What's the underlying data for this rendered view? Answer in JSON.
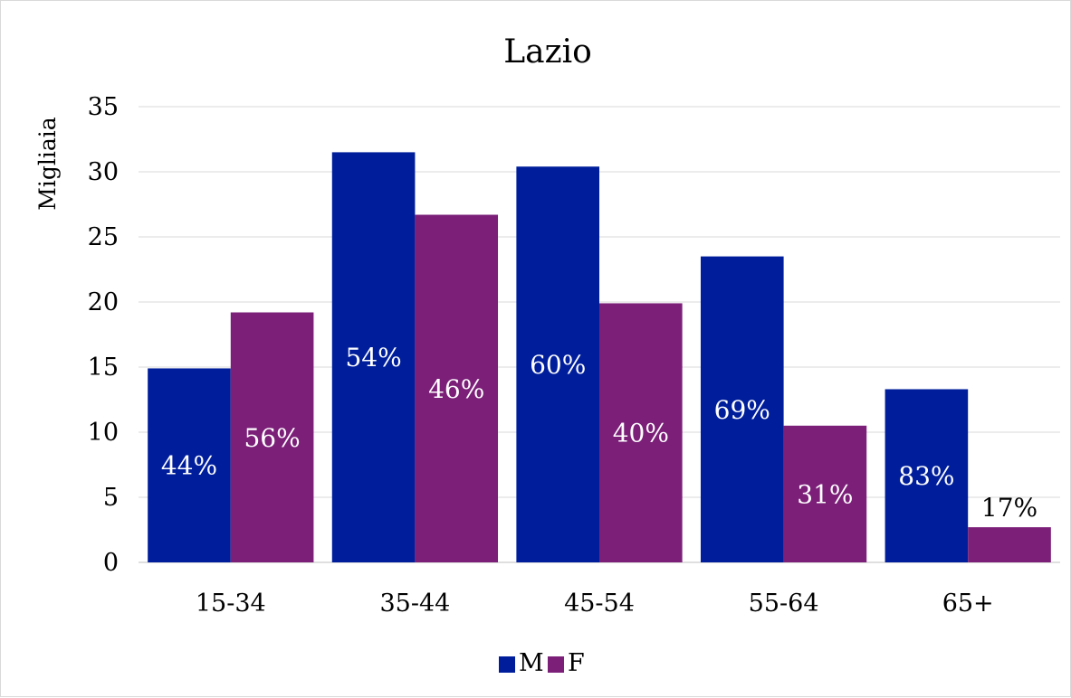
{
  "chart_data": {
    "type": "bar",
    "title": "Lazio",
    "xlabel": "",
    "ylabel": "Migliaia",
    "ylim": [
      0,
      35
    ],
    "yticks": [
      0,
      5,
      10,
      15,
      20,
      25,
      30,
      35
    ],
    "grid": true,
    "legend_position": "bottom",
    "categories": [
      "15-34",
      "35-44",
      "45-54",
      "55-64",
      "65+"
    ],
    "series": [
      {
        "name": "M",
        "color": "#001E9B",
        "values": [
          14.9,
          31.5,
          30.4,
          23.5,
          13.3
        ],
        "labels": [
          "44%",
          "54%",
          "60%",
          "69%",
          "83%"
        ]
      },
      {
        "name": "F",
        "color": "#7B1F78",
        "values": [
          19.2,
          26.7,
          19.9,
          10.5,
          2.7
        ],
        "labels": [
          "56%",
          "46%",
          "40%",
          "31%",
          "17%"
        ]
      }
    ]
  }
}
